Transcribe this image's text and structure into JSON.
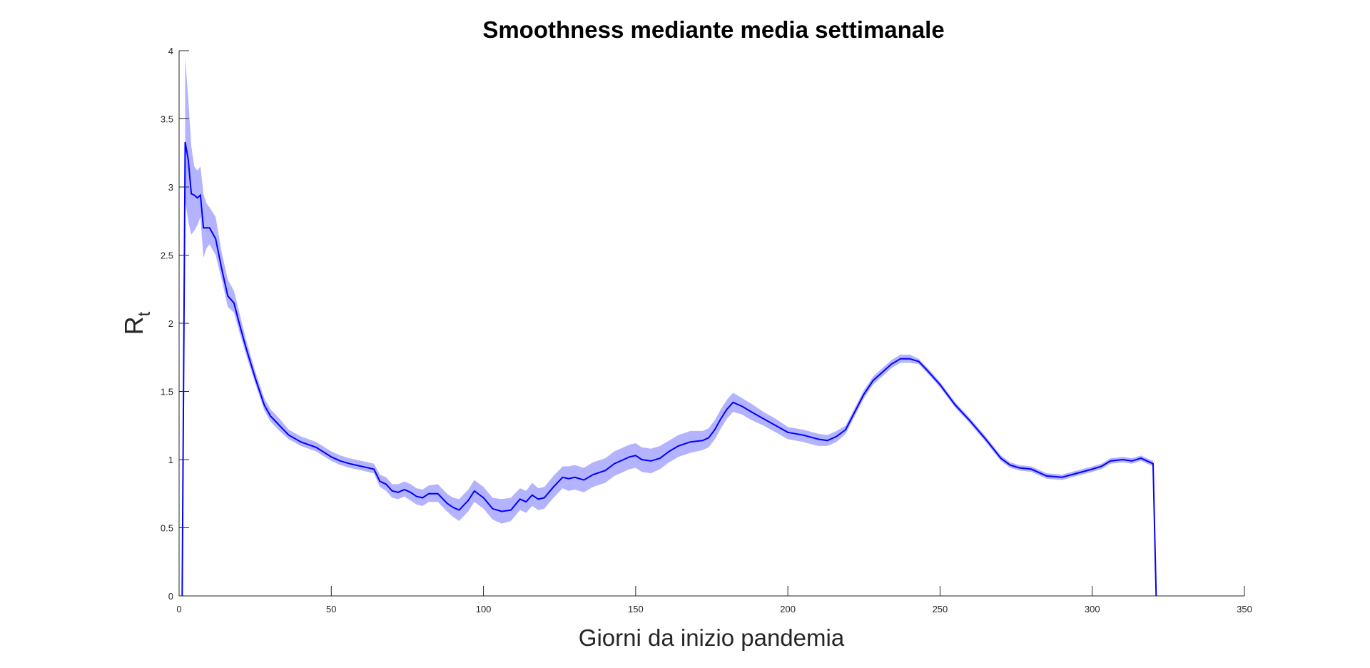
{
  "chart_data": {
    "type": "line",
    "title": "Smoothness mediante media settimanale",
    "xlabel": "Giorni da inizio pandemia",
    "ylabel": {
      "main": "R",
      "subscript": "t"
    },
    "xlim": [
      0,
      350
    ],
    "ylim": [
      0,
      4
    ],
    "xticks": [
      0,
      50,
      100,
      150,
      200,
      250,
      300,
      350
    ],
    "yticks": [
      0,
      0.5,
      1,
      1.5,
      2,
      2.5,
      3,
      3.5,
      4
    ],
    "ytick_labels": [
      "0",
      "0.5",
      "1",
      "1.5",
      "2",
      "2.5",
      "3",
      "3.5",
      "4"
    ],
    "grid": false,
    "colors": {
      "line": "#0000ff",
      "band": "#b3b3ff"
    },
    "series": [
      {
        "type": "line",
        "x": [
          1,
          2,
          3,
          4,
          5,
          6,
          7,
          8,
          9,
          10,
          12,
          14,
          16,
          18,
          20,
          22,
          25,
          28,
          30,
          33,
          36,
          40,
          45,
          50,
          53,
          56,
          60,
          64,
          66,
          68,
          70,
          72,
          74,
          76,
          78,
          80,
          82,
          85,
          88,
          90,
          92,
          95,
          97,
          100,
          103,
          106,
          109,
          112,
          114,
          116,
          118,
          120,
          123,
          126,
          128,
          130,
          133,
          136,
          140,
          143,
          146,
          148,
          150,
          152,
          155,
          158,
          161,
          164,
          168,
          172,
          174,
          176,
          178,
          180,
          182,
          185,
          188,
          192,
          196,
          200,
          205,
          210,
          213,
          216,
          219,
          222,
          225,
          228,
          231,
          234,
          237,
          240,
          243,
          246,
          250,
          255,
          260,
          265,
          270,
          273,
          276,
          280,
          285,
          290,
          295,
          300,
          303,
          306,
          310,
          313,
          316,
          318,
          320
        ],
        "values": [
          0,
          3.33,
          3.2,
          2.95,
          2.94,
          2.92,
          2.94,
          2.7,
          2.7,
          2.7,
          2.62,
          2.4,
          2.2,
          2.15,
          1.98,
          1.82,
          1.6,
          1.4,
          1.32,
          1.25,
          1.18,
          1.13,
          1.09,
          1.02,
          0.99,
          0.97,
          0.95,
          0.93,
          0.84,
          0.82,
          0.77,
          0.76,
          0.78,
          0.76,
          0.73,
          0.72,
          0.75,
          0.75,
          0.68,
          0.65,
          0.63,
          0.7,
          0.77,
          0.72,
          0.64,
          0.62,
          0.63,
          0.71,
          0.69,
          0.74,
          0.71,
          0.72,
          0.8,
          0.87,
          0.86,
          0.87,
          0.85,
          0.89,
          0.92,
          0.97,
          1.0,
          1.02,
          1.03,
          1.0,
          0.99,
          1.01,
          1.06,
          1.1,
          1.13,
          1.14,
          1.16,
          1.22,
          1.3,
          1.37,
          1.42,
          1.39,
          1.35,
          1.3,
          1.25,
          1.2,
          1.18,
          1.15,
          1.14,
          1.17,
          1.22,
          1.35,
          1.48,
          1.58,
          1.64,
          1.7,
          1.74,
          1.74,
          1.72,
          1.65,
          1.55,
          1.4,
          1.28,
          1.15,
          1.01,
          0.96,
          0.94,
          0.93,
          0.88,
          0.87,
          0.9,
          0.93,
          0.95,
          0.99,
          1.0,
          0.99,
          1.01,
          0.99,
          0.97
        ]
      }
    ],
    "band": {
      "x": [
        2,
        3,
        4,
        5,
        6,
        7,
        8,
        9,
        10,
        12,
        14,
        16,
        18,
        20,
        22,
        25,
        28,
        30,
        33,
        36,
        40,
        45,
        50,
        53,
        56,
        60,
        64,
        66,
        68,
        70,
        72,
        74,
        76,
        78,
        80,
        82,
        85,
        88,
        90,
        92,
        95,
        97,
        100,
        103,
        106,
        109,
        112,
        114,
        116,
        118,
        120,
        123,
        126,
        128,
        130,
        133,
        136,
        140,
        143,
        146,
        148,
        150,
        152,
        155,
        158,
        161,
        164,
        168,
        172,
        174,
        176,
        178,
        180,
        182,
        185,
        188,
        192,
        196,
        200,
        205,
        210,
        213,
        216,
        219,
        222,
        225,
        228,
        231,
        234,
        237,
        240,
        243,
        246,
        250,
        255,
        260,
        265,
        270,
        273,
        276,
        280,
        285,
        290,
        295,
        300,
        303,
        306,
        310,
        313,
        316,
        318,
        320
      ],
      "lower": [
        2.9,
        2.75,
        2.65,
        2.68,
        2.72,
        2.78,
        2.48,
        2.55,
        2.58,
        2.5,
        2.32,
        2.12,
        2.08,
        1.92,
        1.77,
        1.56,
        1.36,
        1.28,
        1.21,
        1.15,
        1.1,
        1.06,
        0.99,
        0.96,
        0.94,
        0.92,
        0.9,
        0.8,
        0.77,
        0.72,
        0.71,
        0.73,
        0.7,
        0.67,
        0.66,
        0.69,
        0.69,
        0.62,
        0.58,
        0.55,
        0.62,
        0.69,
        0.64,
        0.56,
        0.53,
        0.55,
        0.63,
        0.61,
        0.66,
        0.63,
        0.64,
        0.72,
        0.79,
        0.77,
        0.78,
        0.76,
        0.8,
        0.83,
        0.88,
        0.91,
        0.93,
        0.94,
        0.91,
        0.9,
        0.93,
        0.98,
        1.02,
        1.05,
        1.07,
        1.09,
        1.15,
        1.23,
        1.3,
        1.35,
        1.33,
        1.29,
        1.25,
        1.2,
        1.15,
        1.13,
        1.1,
        1.1,
        1.13,
        1.19,
        1.32,
        1.45,
        1.55,
        1.61,
        1.67,
        1.71,
        1.71,
        1.7,
        1.63,
        1.53,
        1.38,
        1.26,
        1.13,
        0.99,
        0.94,
        0.92,
        0.91,
        0.86,
        0.85,
        0.88,
        0.91,
        0.93,
        0.97,
        0.98,
        0.97,
        0.99,
        0.97,
        0.95
      ],
      "upper": [
        3.95,
        3.65,
        3.3,
        3.15,
        3.12,
        3.15,
        2.95,
        2.88,
        2.85,
        2.78,
        2.52,
        2.32,
        2.24,
        2.06,
        1.88,
        1.65,
        1.45,
        1.37,
        1.3,
        1.22,
        1.17,
        1.13,
        1.06,
        1.03,
        1.01,
        0.99,
        0.97,
        0.89,
        0.87,
        0.82,
        0.82,
        0.84,
        0.82,
        0.79,
        0.78,
        0.81,
        0.82,
        0.75,
        0.72,
        0.71,
        0.78,
        0.85,
        0.8,
        0.72,
        0.71,
        0.72,
        0.79,
        0.77,
        0.83,
        0.79,
        0.8,
        0.88,
        0.95,
        0.95,
        0.96,
        0.94,
        0.98,
        1.01,
        1.06,
        1.09,
        1.11,
        1.12,
        1.09,
        1.08,
        1.1,
        1.14,
        1.18,
        1.21,
        1.21,
        1.23,
        1.29,
        1.37,
        1.44,
        1.49,
        1.45,
        1.41,
        1.35,
        1.3,
        1.24,
        1.22,
        1.19,
        1.18,
        1.21,
        1.25,
        1.38,
        1.51,
        1.61,
        1.67,
        1.73,
        1.77,
        1.77,
        1.74,
        1.67,
        1.57,
        1.42,
        1.3,
        1.17,
        1.03,
        0.98,
        0.96,
        0.95,
        0.9,
        0.89,
        0.92,
        0.95,
        0.97,
        1.01,
        1.02,
        1.01,
        1.03,
        1.01,
        0.99
      ]
    },
    "drop_to_zero_at": 321
  }
}
